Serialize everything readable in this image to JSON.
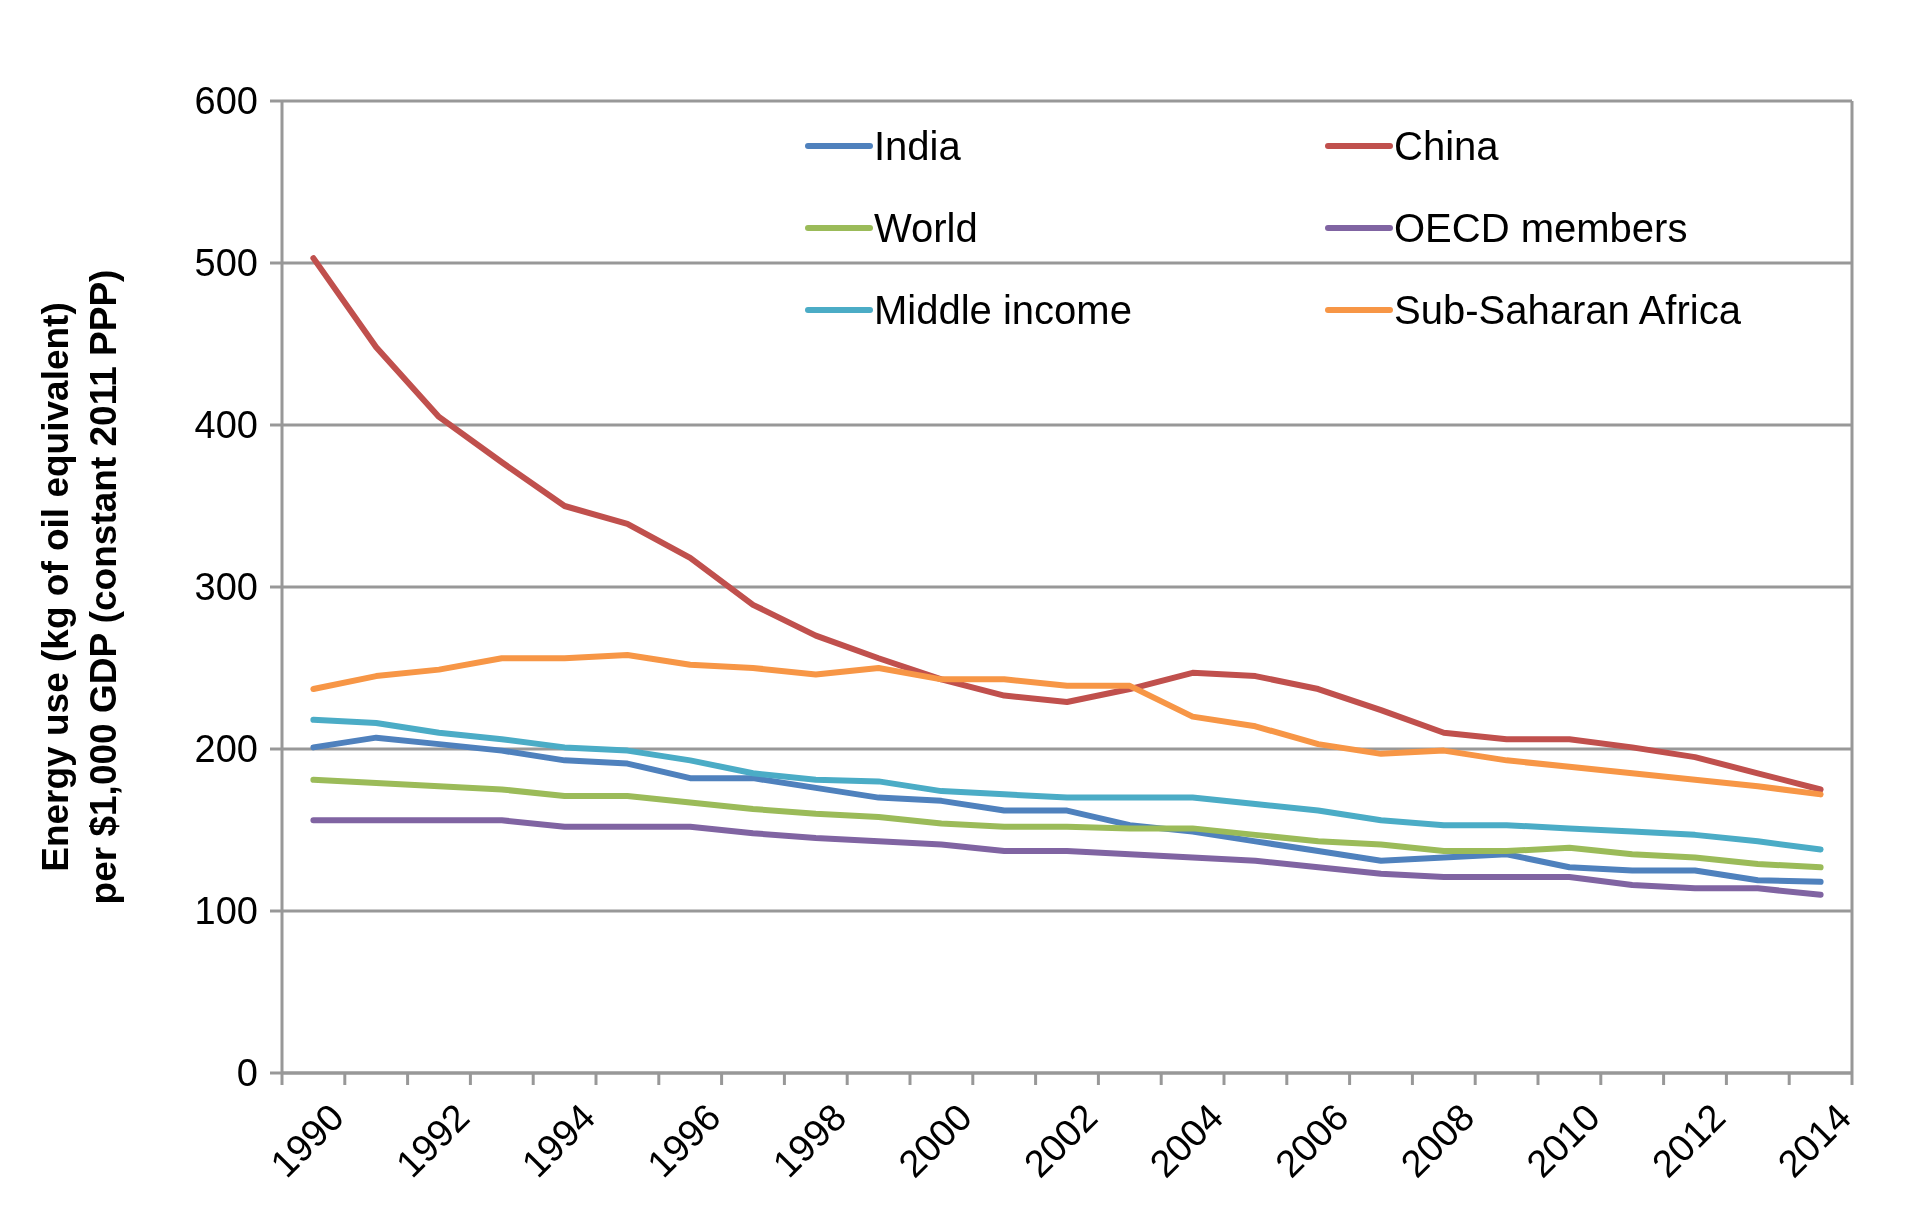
{
  "chart_data": {
    "type": "line",
    "ylabel": "Energy use (kg of oil equivalent)\nper $1,000 GDP (constant 2011 PPP)",
    "categories": [
      "1990",
      null,
      "1992",
      null,
      "1994",
      null,
      "1996",
      null,
      "1998",
      null,
      "2000",
      null,
      "2002",
      null,
      "2004",
      null,
      "2006",
      null,
      "2008",
      null,
      "2010",
      null,
      "2012",
      null,
      "2014"
    ],
    "ylim": [
      0,
      600
    ],
    "yticks": [
      0,
      100,
      200,
      300,
      400,
      500,
      600
    ],
    "grid": "y",
    "legend": "top",
    "marker": "none",
    "line_style": "solid",
    "series": [
      {
        "name": "India",
        "color": "#4f81bd",
        "values": [
          201,
          207,
          203,
          199,
          193,
          191,
          182,
          182,
          176,
          170,
          168,
          162,
          162,
          153,
          149,
          143,
          137,
          131,
          133,
          135,
          127,
          125,
          125,
          119,
          118
        ]
      },
      {
        "name": "China",
        "color": "#c0504d",
        "values": [
          503,
          448,
          405,
          377,
          350,
          339,
          318,
          289,
          270,
          256,
          243,
          233,
          229,
          237,
          247,
          245,
          237,
          224,
          210,
          206,
          206,
          201,
          195,
          185,
          175
        ]
      },
      {
        "name": "World",
        "color": "#9bbb59",
        "values": [
          181,
          179,
          177,
          175,
          171,
          171,
          167,
          163,
          160,
          158,
          154,
          152,
          152,
          151,
          151,
          147,
          143,
          141,
          137,
          137,
          139,
          135,
          133,
          129,
          127
        ]
      },
      {
        "name": "OECD members",
        "color": "#8064a2",
        "values": [
          156,
          156,
          156,
          156,
          152,
          152,
          152,
          148,
          145,
          143,
          141,
          137,
          137,
          135,
          133,
          131,
          127,
          123,
          121,
          121,
          121,
          116,
          114,
          114,
          110
        ]
      },
      {
        "name": "Middle income",
        "color": "#4bacc6",
        "values": [
          218,
          216,
          210,
          206,
          201,
          199,
          193,
          185,
          181,
          180,
          174,
          172,
          170,
          170,
          170,
          166,
          162,
          156,
          153,
          153,
          151,
          149,
          147,
          143,
          138
        ]
      },
      {
        "name": "Sub-Saharan Africa",
        "color": "#f79646",
        "values": [
          237,
          245,
          249,
          256,
          256,
          258,
          252,
          250,
          246,
          250,
          243,
          243,
          239,
          239,
          220,
          214,
          203,
          197,
          199,
          193,
          189,
          185,
          181,
          177,
          172
        ]
      }
    ]
  }
}
